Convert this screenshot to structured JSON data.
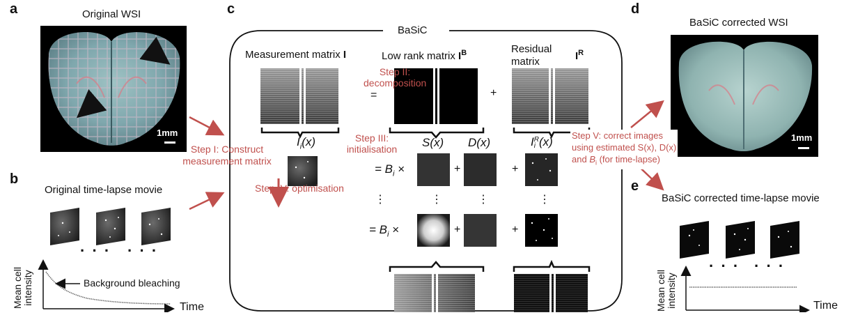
{
  "colors": {
    "accent_red": "#c0504d",
    "tissue_bg": "#000000"
  },
  "panels": {
    "a": "a",
    "b": "b",
    "c": "c",
    "d": "d",
    "e": "e"
  },
  "panel_a": {
    "title": "Original WSI",
    "scalebar": "1mm"
  },
  "panel_b": {
    "title": "Original time-lapse movie",
    "annotation": "Background bleaching",
    "ylabel": "Mean cell intensity",
    "ylabel1": "Mean cell",
    "ylabel2": "intensity",
    "xlabel": "Time",
    "dots": "· · ·"
  },
  "panel_c": {
    "title": "BaSiC",
    "measurement": "Measurement matrix ",
    "measurement_sym": "I",
    "lowrank": "Low rank matrix ",
    "lowrank_sym": "I",
    "lowrank_sup": "B",
    "residual1": "Residual",
    "residual2": "matrix",
    "residual_sym": "I",
    "residual_sup": "R",
    "step1a": "Step I: Construct",
    "step1b": "measurement matrix",
    "step2a": "Step II:",
    "step2b": "decomposition",
    "step3a": "Step III:",
    "step3b": "initialisation",
    "step4": "Step IV: optimisation",
    "Ii": "I",
    "Ii_sub": "i",
    "Ii_arg": "(x)",
    "Sx": "S(x)",
    "Dx": "D(x)",
    "IRi": "I",
    "IRi_sup": "R",
    "IRi_sub": "i",
    "IRi_arg": "(x)",
    "Bi": "B",
    "Bi_sub": "i",
    "equals": "=",
    "plus": "+",
    "times": "×",
    "vdots": "⋮"
  },
  "step5": {
    "line1": "Step V: correct images",
    "line2": "using estimated S(x), D(x)",
    "line3a": "and ",
    "line3b": "B",
    "line3c": "i",
    "line3d": " (for time-lapse)"
  },
  "panel_d": {
    "title": "BaSiC corrected WSI",
    "scalebar": "1mm"
  },
  "panel_e": {
    "title": "BaSiC corrected time-lapse movie",
    "ylabel1": "Mean cell",
    "ylabel2": "intensity",
    "xlabel": "Time",
    "dots": "· · ·"
  }
}
